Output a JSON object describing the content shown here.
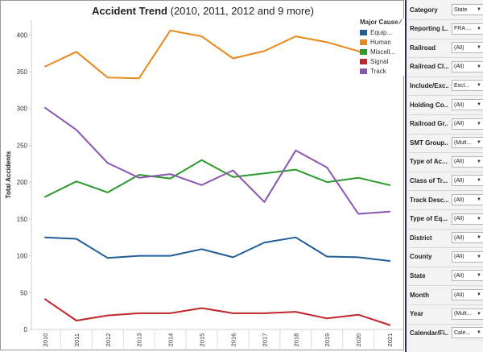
{
  "chart_data": {
    "type": "line",
    "title": "Accident Trend",
    "subtitle": "(2010, 2011, 2012 and 9 more)",
    "ylabel": "Total Accidents",
    "xlabel": "",
    "ylim": [
      0,
      420
    ],
    "yticks": [
      0,
      50,
      100,
      150,
      200,
      250,
      300,
      350,
      400
    ],
    "categories": [
      "2010",
      "2011",
      "2012",
      "2013",
      "2014",
      "2015",
      "2016",
      "2017",
      "2018",
      "2019",
      "2020",
      "2021"
    ],
    "grid": false,
    "legend_placement": "top-right",
    "series": [
      {
        "name": "Equip...",
        "color": "#1f5e96",
        "values": [
          125,
          123,
          97,
          100,
          100,
          109,
          98,
          118,
          125,
          99,
          98,
          93
        ]
      },
      {
        "name": "Human",
        "color": "#e8881c",
        "values": [
          357,
          377,
          342,
          341,
          406,
          398,
          368,
          378,
          398,
          390,
          378,
          350
        ]
      },
      {
        "name": "Miscell...",
        "color": "#2b9a2b",
        "values": [
          180,
          201,
          186,
          210,
          205,
          230,
          207,
          212,
          217,
          200,
          206,
          196
        ]
      },
      {
        "name": "Signal",
        "color": "#c0262b",
        "values": [
          41,
          12,
          19,
          22,
          22,
          29,
          22,
          22,
          24,
          15,
          20,
          6
        ]
      },
      {
        "name": "Track",
        "color": "#8a57b0",
        "values": [
          301,
          271,
          226,
          206,
          211,
          196,
          216,
          173,
          243,
          220,
          157,
          160
        ]
      }
    ]
  },
  "legend": {
    "title": "Major Cause",
    "pin_icon": "pin-icon"
  },
  "filters": [
    {
      "label": "Category",
      "value": "State"
    },
    {
      "label": "Reporting L...",
      "value": "FRA ..."
    },
    {
      "label": "Railroad",
      "value": "(All)"
    },
    {
      "label": "Railroad Cl...",
      "value": "(All)"
    },
    {
      "label": "Include/Exc...",
      "value": "Excl..."
    },
    {
      "label": "Holding Co...",
      "value": "(All)"
    },
    {
      "label": "Railroad Gr...",
      "value": "(All)"
    },
    {
      "label": "SMT Group...",
      "value": "(Mult..."
    },
    {
      "label": "Type of Ac...",
      "value": "(All)"
    },
    {
      "label": "Class of Tr...",
      "value": "(All)"
    },
    {
      "label": "Track Desc...",
      "value": "(All)"
    },
    {
      "label": "Type of Eq...",
      "value": "(All)"
    },
    {
      "label": "District",
      "value": "(All)"
    },
    {
      "label": "County",
      "value": "(All)"
    },
    {
      "label": "State",
      "value": "(All)"
    },
    {
      "label": "Month",
      "value": "(All)"
    },
    {
      "label": "Year",
      "value": "(Mult..."
    },
    {
      "label": "Calendar/Fi...",
      "value": "Cale..."
    }
  ]
}
